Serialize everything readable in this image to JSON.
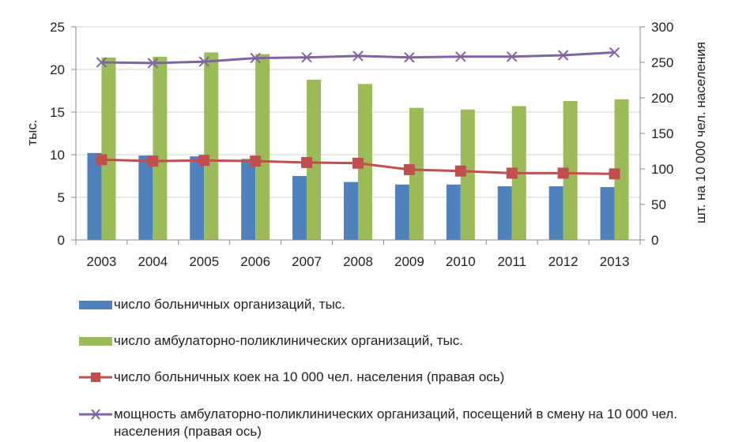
{
  "chart_data": {
    "type": "bar",
    "categories": [
      "2003",
      "2004",
      "2005",
      "2006",
      "2007",
      "2008",
      "2009",
      "2010",
      "2011",
      "2012",
      "2013"
    ],
    "left_axis": {
      "label": "тыс.",
      "min": 0,
      "max": 25,
      "ticks": [
        "0",
        "5",
        "10",
        "15",
        "20",
        "25"
      ]
    },
    "right_axis": {
      "label": "шт. на 10 000 чел. населения",
      "min": 0,
      "max": 300,
      "ticks": [
        "0",
        "50",
        "100",
        "150",
        "200",
        "250",
        "300"
      ]
    },
    "series": [
      {
        "name": "число больничных организаций, тыс.",
        "kind": "bar",
        "axis": "left",
        "color": "#4f81bd",
        "values": [
          10.2,
          9.9,
          9.8,
          9.5,
          7.5,
          6.8,
          6.5,
          6.5,
          6.3,
          6.3,
          6.2
        ]
      },
      {
        "name": "число амбулаторно-поликлинических организаций, тыс.",
        "kind": "bar",
        "axis": "left",
        "color": "#9bbb59",
        "values": [
          21.4,
          21.5,
          22.0,
          21.8,
          18.8,
          18.3,
          15.5,
          15.3,
          15.7,
          16.3,
          16.5
        ]
      },
      {
        "name": "число больничных коек на 10 000 чел. населения (правая ось)",
        "kind": "line",
        "axis": "right",
        "color": "#c0504d",
        "marker": "square",
        "values": [
          113,
          111,
          112,
          111,
          109,
          108,
          99,
          97,
          94,
          94,
          93
        ]
      },
      {
        "name": "мощность амбулаторно-поликлинических организаций, посещений в смену на 10 000 чел. населения (правая ось)",
        "kind": "line",
        "axis": "right",
        "color": "#8064a2",
        "marker": "x",
        "values": [
          250,
          249,
          251,
          256,
          257,
          259,
          257,
          258,
          258,
          260,
          264
        ]
      }
    ],
    "grid": "horizontal",
    "legend_position": "bottom"
  }
}
